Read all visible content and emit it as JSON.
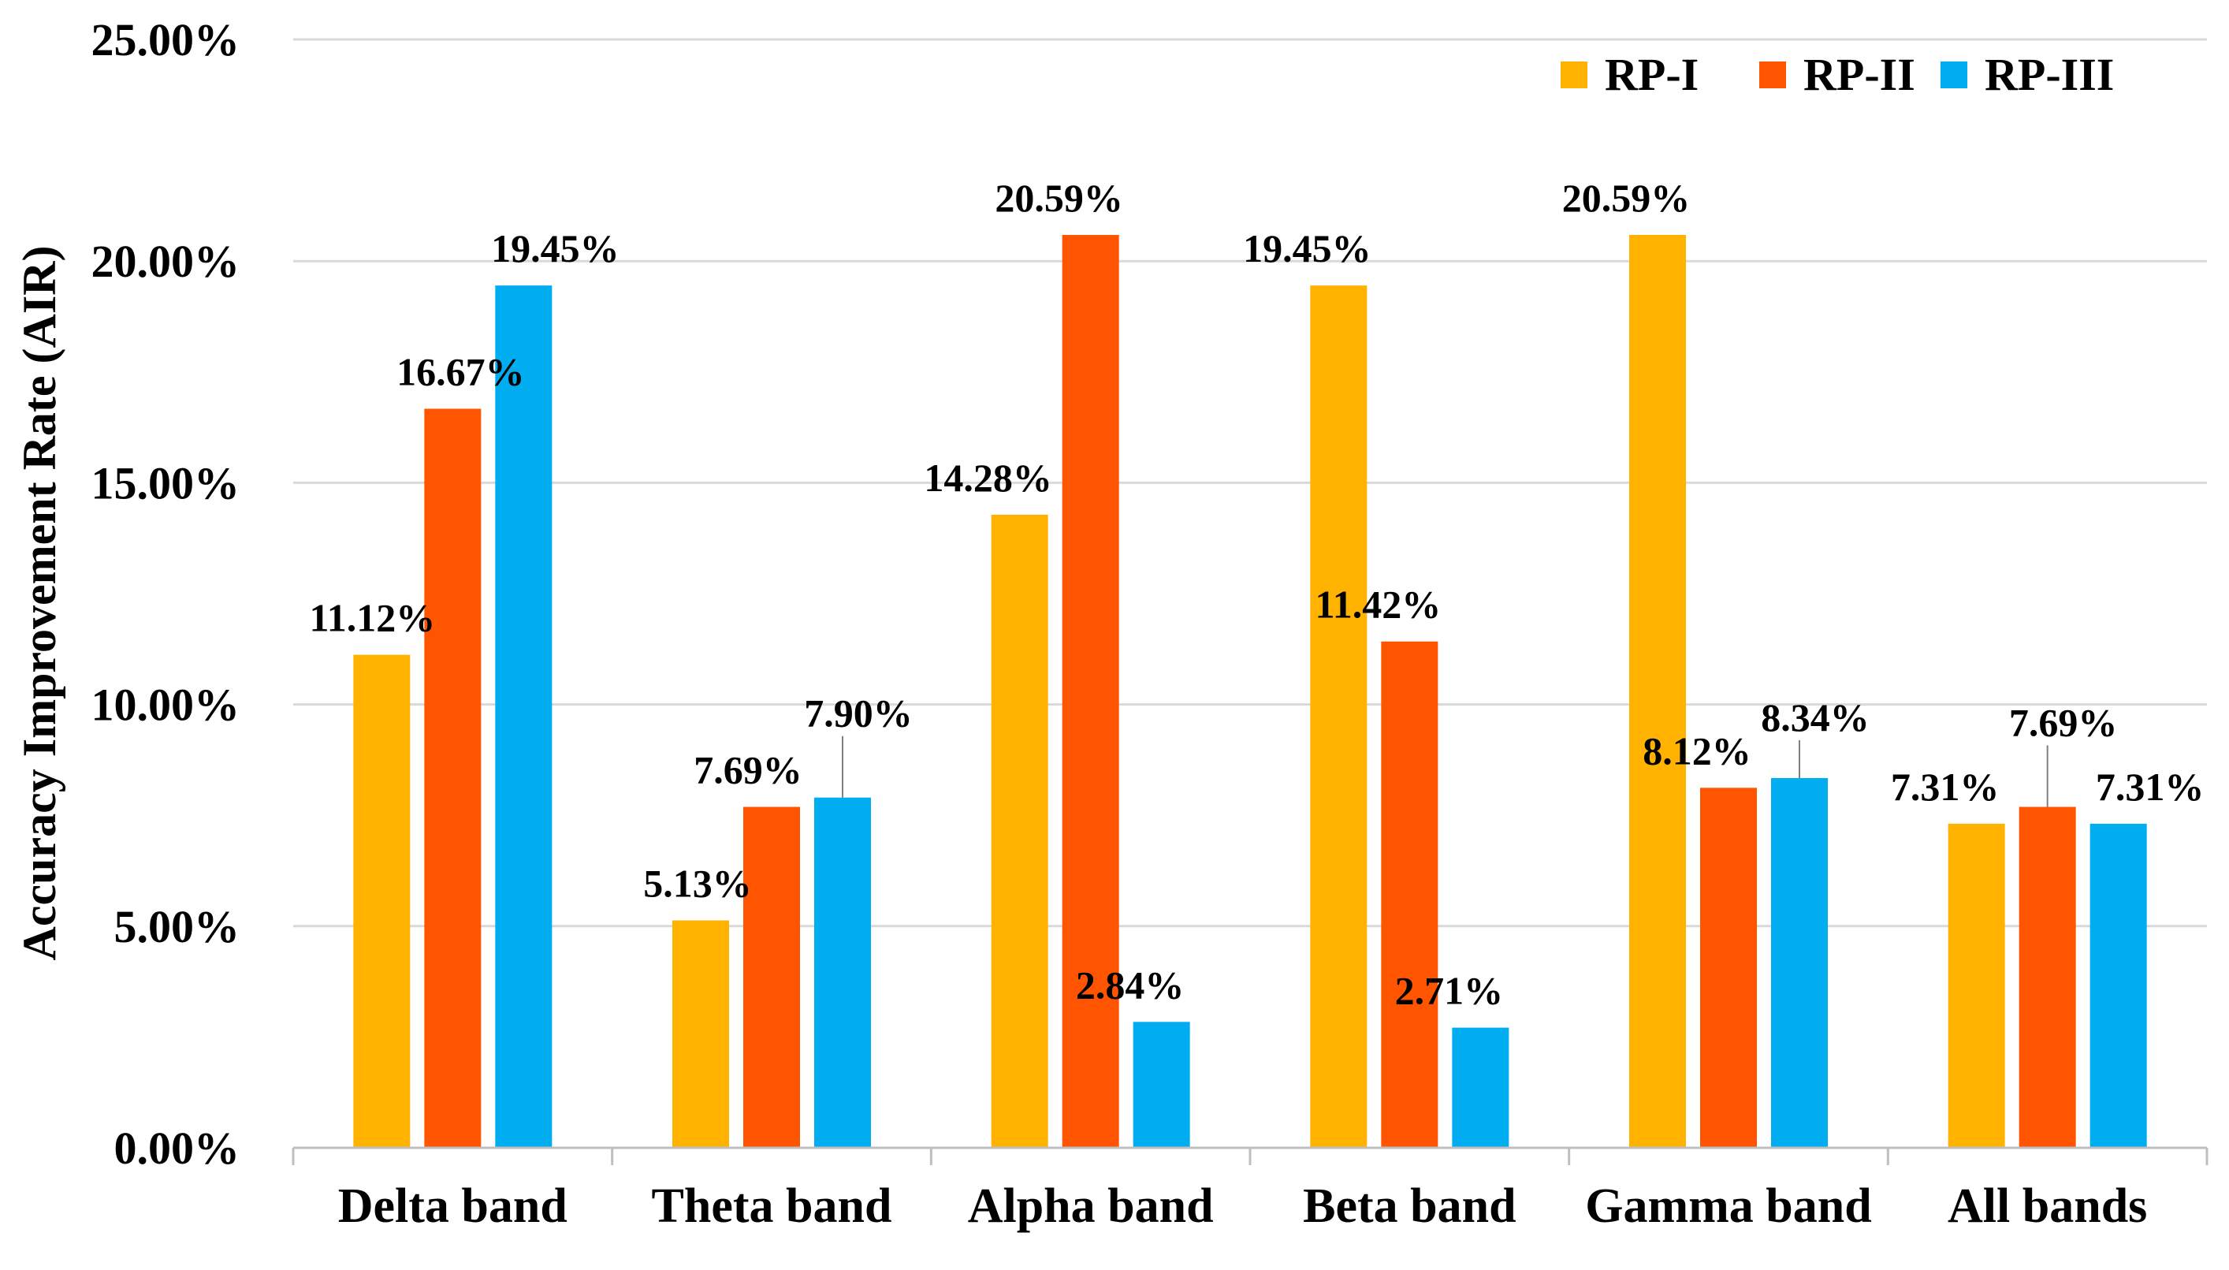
{
  "chart_data": {
    "type": "bar",
    "title": "",
    "xlabel": "",
    "ylabel": "Accuracy Improvement Rate (AIR)",
    "ylim": [
      0,
      25
    ],
    "yticks": [
      "0.00%",
      "5.00%",
      "10.00%",
      "15.00%",
      "20.00%",
      "25.00%"
    ],
    "grid": true,
    "legend_position": "top-right",
    "categories": [
      "Delta band",
      "Theta band",
      "Alpha band",
      "Beta band",
      "Gamma band",
      "All bands"
    ],
    "series": [
      {
        "name": "RP-I",
        "color": "#FFB300",
        "values": [
          11.12,
          5.13,
          14.28,
          19.45,
          20.59,
          7.31
        ],
        "labels": [
          "11.12%",
          "5.13%",
          "14.28%",
          "19.45%",
          "20.59%",
          "7.31%"
        ]
      },
      {
        "name": "RP-II",
        "color": "#FF5500",
        "values": [
          16.67,
          7.69,
          20.59,
          11.42,
          8.12,
          7.69
        ],
        "labels": [
          "16.67%",
          "7.69%",
          "20.59%",
          "11.42%",
          "8.12%",
          "7.69%"
        ]
      },
      {
        "name": "RP-III",
        "color": "#00ADF0",
        "values": [
          19.45,
          7.9,
          2.84,
          2.71,
          8.34,
          7.31
        ],
        "labels": [
          "19.45%",
          "7.90%",
          "2.84%",
          "2.71%",
          "8.34%",
          "7.31%"
        ]
      }
    ]
  }
}
